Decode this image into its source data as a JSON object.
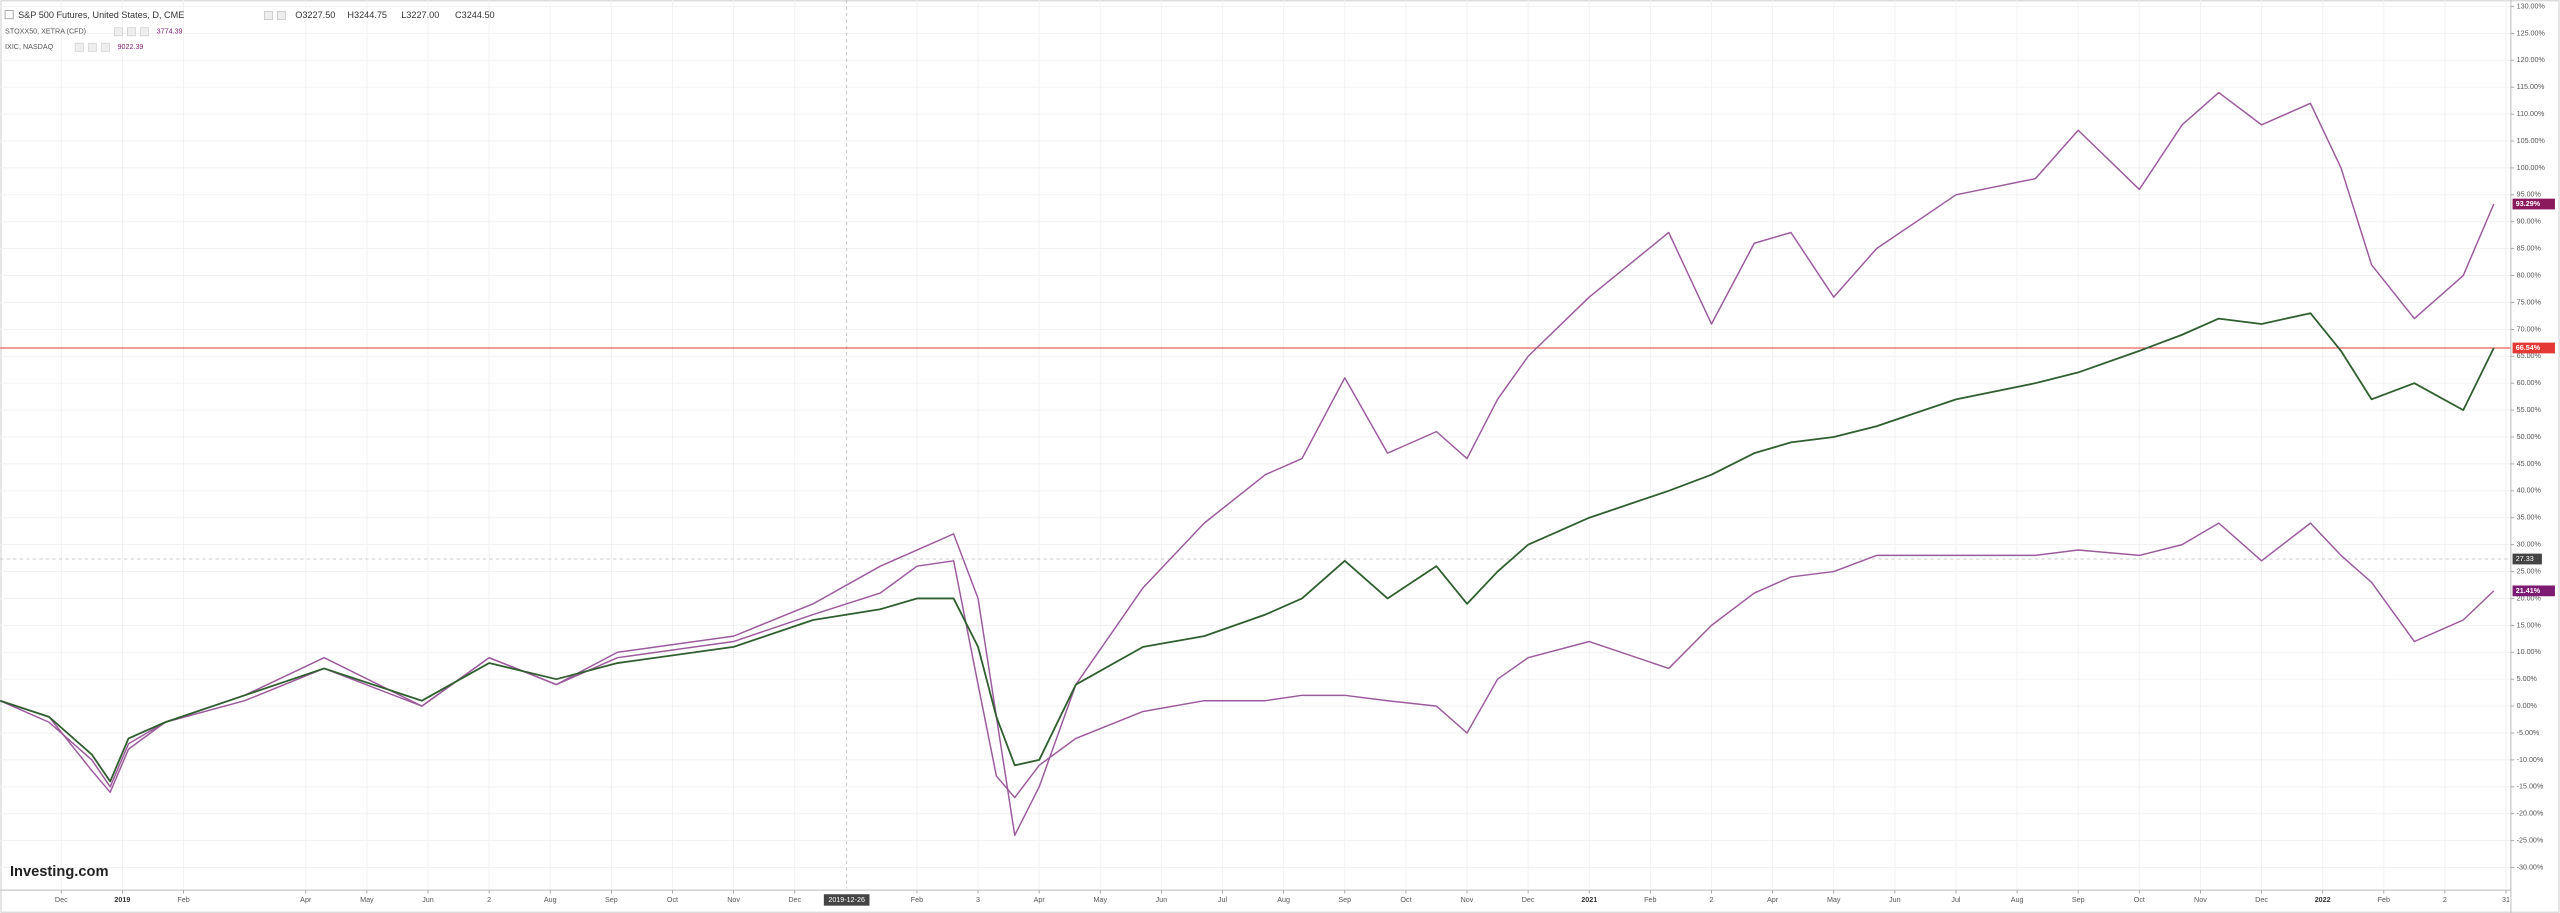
{
  "chart_data": {
    "type": "line",
    "header": {
      "symbol": "S&P 500 Futures, United States, D, CME",
      "open": "O3227.50",
      "high": "H3244.75",
      "low": "L3227.00",
      "close": "C3244.50"
    },
    "compare": [
      {
        "symbol": "STOXX50, XETRA (CFD)",
        "price": "3774.39"
      },
      {
        "symbol": "IXIC, NASDAQ",
        "price": "9022.39"
      }
    ],
    "logo": "Investing.com",
    "x": [
      0,
      0.8,
      1.5,
      1.8,
      2.1,
      2.7,
      4,
      5.3,
      6.9,
      8,
      9.1,
      10.1,
      12,
      13.3,
      14.4,
      15,
      15.6,
      16,
      16.3,
      16.6,
      17,
      17.6,
      18.7,
      19.7,
      20.7,
      21.3,
      22,
      22.7,
      23.5,
      24,
      24.5,
      25,
      26,
      27.3,
      28,
      28.7,
      29.3,
      30,
      30.7,
      32,
      33.3,
      34,
      35,
      35.7,
      36.3,
      37,
      37.8,
      38.3,
      38.8,
      39.5,
      40.3,
      40.8
    ],
    "series": [
      {
        "name": "S&P 500 Futures",
        "color": "#2f5e2f",
        "last_value_label": "66.54%",
        "label_color": "#e53935",
        "values": [
          1,
          -2,
          -9,
          -14,
          -6,
          -3,
          2,
          7,
          1,
          8,
          5,
          8,
          11,
          16,
          18,
          20,
          20,
          11,
          -2,
          -11,
          -10,
          4,
          11,
          13,
          17,
          20,
          27,
          20,
          26,
          19,
          25,
          30,
          35,
          40,
          43,
          47,
          49,
          50,
          52,
          57,
          60,
          62,
          66,
          69,
          72,
          71,
          73,
          66,
          57,
          60,
          55,
          66.54
        ]
      },
      {
        "name": "STOXX50",
        "color": "#9b5a9c",
        "last_value_label": "21.41%",
        "label_color": "#7d1a72",
        "values": [
          1,
          -3,
          -10,
          -15,
          -7,
          -3,
          1,
          7,
          0,
          9,
          4,
          9,
          12,
          17,
          21,
          26,
          27,
          4,
          -13,
          -17,
          -11,
          -6,
          -1,
          1,
          1,
          2,
          2,
          1,
          0,
          -5,
          5,
          9,
          12,
          7,
          15,
          21,
          24,
          25,
          28,
          28,
          28,
          29,
          28,
          30,
          34,
          27,
          34,
          28,
          23,
          12,
          16,
          21.41
        ]
      },
      {
        "name": "IXIC",
        "color": "#9b5a9c",
        "last_value_label": "93.29%",
        "label_color": "#8a1a5c",
        "values": [
          1,
          -2,
          -12,
          -16,
          -8,
          -3,
          2,
          9,
          0,
          9,
          4,
          10,
          13,
          19,
          26,
          29,
          32,
          20,
          -2,
          -24,
          -15,
          4,
          22,
          34,
          43,
          46,
          61,
          47,
          51,
          46,
          57,
          65,
          76,
          88,
          71,
          86,
          88,
          76,
          85,
          95,
          98,
          107,
          96,
          108,
          114,
          108,
          112,
          100,
          82,
          72,
          80,
          93.29
        ]
      }
    ],
    "crosshair": {
      "x": 13.85,
      "x_label": "2019-12-26",
      "y_value": 27.33
    },
    "xlim": [
      0,
      41.08
    ],
    "ylim": [
      -33.9,
      131.2
    ],
    "grid": true,
    "xticks": [
      {
        "value": 1,
        "label": "Dec"
      },
      {
        "value": 2,
        "label": "2019"
      },
      {
        "value": 3,
        "label": "Feb"
      },
      {
        "value": 5,
        "label": "Apr"
      },
      {
        "value": 6,
        "label": "May"
      },
      {
        "value": 7,
        "label": "Jun"
      },
      {
        "value": 8,
        "label": "2"
      },
      {
        "value": 9,
        "label": "Aug"
      },
      {
        "value": 10,
        "label": "Sep"
      },
      {
        "value": 11,
        "label": "Oct"
      },
      {
        "value": 12,
        "label": "Nov"
      },
      {
        "value": 13,
        "label": "Dec"
      },
      {
        "value": 15,
        "label": "Feb"
      },
      {
        "value": 16,
        "label": "3"
      },
      {
        "value": 17,
        "label": "Apr"
      },
      {
        "value": 18,
        "label": "May"
      },
      {
        "value": 19,
        "label": "Jun"
      },
      {
        "value": 20,
        "label": "Jul"
      },
      {
        "value": 21,
        "label": "Aug"
      },
      {
        "value": 22,
        "label": "Sep"
      },
      {
        "value": 23,
        "label": "Oct"
      },
      {
        "value": 24,
        "label": "Nov"
      },
      {
        "value": 25,
        "label": "Dec"
      },
      {
        "value": 26,
        "label": "2021"
      },
      {
        "value": 27,
        "label": "Feb"
      },
      {
        "value": 28,
        "label": "2"
      },
      {
        "value": 29,
        "label": "Apr"
      },
      {
        "value": 30,
        "label": "May"
      },
      {
        "value": 31,
        "label": "Jun"
      },
      {
        "value": 32,
        "label": "Jul"
      },
      {
        "value": 33,
        "label": "Aug"
      },
      {
        "value": 34,
        "label": "Sep"
      },
      {
        "value": 35,
        "label": "Oct"
      },
      {
        "value": 36,
        "label": "Nov"
      },
      {
        "value": 37,
        "label": "Dec"
      },
      {
        "value": 38,
        "label": "2022"
      },
      {
        "value": 39,
        "label": "Feb"
      },
      {
        "value": 40,
        "label": "2"
      },
      {
        "value": 41,
        "label": "31"
      }
    ],
    "yticks": [
      {
        "value": 130,
        "label": "130.00%"
      },
      {
        "value": 125,
        "label": "125.00%"
      },
      {
        "value": 120,
        "label": "120.00%"
      },
      {
        "value": 115,
        "label": "115.00%"
      },
      {
        "value": 110,
        "label": "110.00%"
      },
      {
        "value": 105,
        "label": "105.00%"
      },
      {
        "value": 100,
        "label": "100.00%"
      },
      {
        "value": 95,
        "label": "95.00%"
      },
      {
        "value": 90,
        "label": "90.00%"
      },
      {
        "value": 85,
        "label": "85.00%"
      },
      {
        "value": 80,
        "label": "80.00%"
      },
      {
        "value": 75,
        "label": "75.00%"
      },
      {
        "value": 70,
        "label": "70.00%"
      },
      {
        "value": 65,
        "label": "65.00%"
      },
      {
        "value": 60,
        "label": "60.00%"
      },
      {
        "value": 55,
        "label": "55.00%"
      },
      {
        "value": 50,
        "label": "50.00%"
      },
      {
        "value": 45,
        "label": "45.00%"
      },
      {
        "value": 40,
        "label": "40.00%"
      },
      {
        "value": 35,
        "label": "35.00%"
      },
      {
        "value": 30,
        "label": "30.00%"
      },
      {
        "value": 25,
        "label": "25.00%"
      },
      {
        "value": 20,
        "label": "20.00%"
      },
      {
        "value": 15,
        "label": "15.00%"
      },
      {
        "value": 10,
        "label": "10.00%"
      },
      {
        "value": 5,
        "label": "5.00%"
      },
      {
        "value": 0,
        "label": "0.00%"
      },
      {
        "value": -5,
        "label": "-5.00%"
      },
      {
        "value": -10,
        "label": "-10.00%"
      },
      {
        "value": -15,
        "label": "-15.00%"
      },
      {
        "value": -20,
        "label": "-20.00%"
      },
      {
        "value": -25,
        "label": "-25.00%"
      },
      {
        "value": -30,
        "label": "-30.00%"
      }
    ]
  }
}
